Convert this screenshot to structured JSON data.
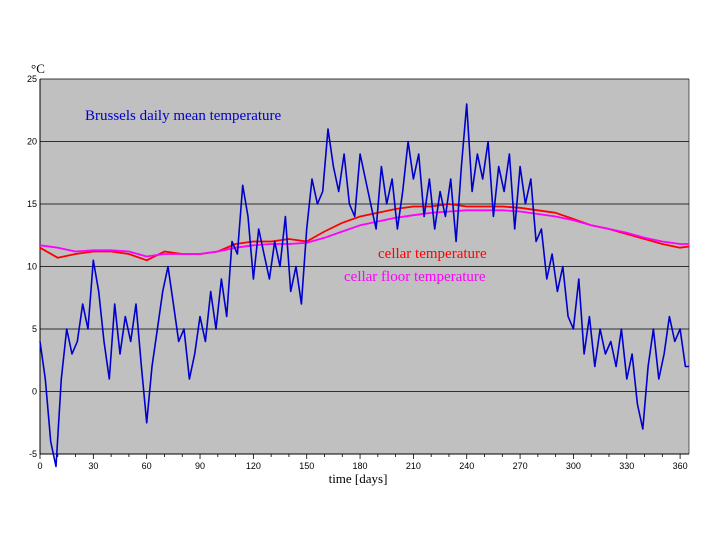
{
  "chart_data": {
    "type": "line",
    "title": "",
    "xlabel": "time [days]",
    "ylabel": "°C",
    "xlim": [
      0,
      365
    ],
    "ylim": [
      -5,
      25
    ],
    "x_ticks": [
      0,
      30,
      60,
      90,
      120,
      150,
      180,
      210,
      240,
      270,
      300,
      330,
      360
    ],
    "y_ticks": [
      -5,
      0,
      5,
      10,
      15,
      20,
      25
    ],
    "grid": "horizontal",
    "background": "#c0c0c0",
    "series": [
      {
        "name": "Brussels daily mean temperature",
        "color": "#0000cc",
        "x": [
          0,
          3,
          6,
          9,
          12,
          15,
          18,
          21,
          24,
          27,
          30,
          33,
          36,
          39,
          42,
          45,
          48,
          51,
          54,
          57,
          60,
          63,
          66,
          69,
          72,
          75,
          78,
          81,
          84,
          87,
          90,
          93,
          96,
          99,
          102,
          105,
          108,
          111,
          114,
          117,
          120,
          123,
          126,
          129,
          132,
          135,
          138,
          141,
          144,
          147,
          150,
          153,
          156,
          159,
          162,
          165,
          168,
          171,
          174,
          177,
          180,
          183,
          186,
          189,
          192,
          195,
          198,
          201,
          204,
          207,
          210,
          213,
          216,
          219,
          222,
          225,
          228,
          231,
          234,
          237,
          240,
          243,
          246,
          249,
          252,
          255,
          258,
          261,
          264,
          267,
          270,
          273,
          276,
          279,
          282,
          285,
          288,
          291,
          294,
          297,
          300,
          303,
          306,
          309,
          312,
          315,
          318,
          321,
          324,
          327,
          330,
          333,
          336,
          339,
          342,
          345,
          348,
          351,
          354,
          357,
          360,
          363,
          365
        ],
        "values": [
          4.0,
          1.0,
          -4.0,
          -6.0,
          1.0,
          5.0,
          3.0,
          4.0,
          7.0,
          5.0,
          10.5,
          8.0,
          4.0,
          1.0,
          7.0,
          3.0,
          6.0,
          4.0,
          7.0,
          2.0,
          -2.5,
          2.0,
          5.0,
          8.0,
          10.0,
          7.0,
          4.0,
          5.0,
          1.0,
          3.0,
          6.0,
          4.0,
          8.0,
          5.0,
          9.0,
          6.0,
          12.0,
          11.0,
          16.5,
          14.0,
          9.0,
          13.0,
          11.0,
          9.0,
          12.0,
          10.0,
          14.0,
          8.0,
          10.0,
          7.0,
          13.0,
          17.0,
          15.0,
          16.0,
          21.0,
          18.0,
          16.0,
          19.0,
          15.0,
          14.0,
          19.0,
          17.0,
          15.0,
          13.0,
          18.0,
          15.0,
          17.0,
          13.0,
          16.0,
          20.0,
          17.0,
          19.0,
          14.0,
          17.0,
          13.0,
          16.0,
          14.0,
          17.0,
          12.0,
          18.0,
          23.0,
          16.0,
          19.0,
          17.0,
          20.0,
          14.0,
          18.0,
          16.0,
          19.0,
          13.0,
          18.0,
          15.0,
          17.0,
          12.0,
          13.0,
          9.0,
          11.0,
          8.0,
          10.0,
          6.0,
          5.0,
          9.0,
          3.0,
          6.0,
          2.0,
          5.0,
          3.0,
          4.0,
          2.0,
          5.0,
          1.0,
          3.0,
          -1.0,
          -3.0,
          2.0,
          5.0,
          1.0,
          3.0,
          6.0,
          4.0,
          5.0,
          2.0,
          2.0
        ]
      },
      {
        "name": "cellar temperature",
        "color": "#ff0000",
        "x": [
          0,
          10,
          20,
          30,
          40,
          50,
          60,
          70,
          80,
          90,
          100,
          110,
          120,
          130,
          140,
          150,
          160,
          170,
          180,
          190,
          200,
          210,
          220,
          230,
          240,
          250,
          260,
          270,
          280,
          290,
          300,
          310,
          320,
          330,
          340,
          350,
          360,
          365
        ],
        "values": [
          11.5,
          10.7,
          11.0,
          11.2,
          11.2,
          11.0,
          10.5,
          11.2,
          11.0,
          11.0,
          11.2,
          11.8,
          12.0,
          12.0,
          12.2,
          12.0,
          12.8,
          13.5,
          14.0,
          14.3,
          14.6,
          14.8,
          14.8,
          15.0,
          14.8,
          14.8,
          14.8,
          14.7,
          14.5,
          14.3,
          13.8,
          13.3,
          13.0,
          12.6,
          12.2,
          11.8,
          11.5,
          11.6
        ]
      },
      {
        "name": "cellar floor temperature",
        "color": "#ff00ff",
        "x": [
          0,
          10,
          20,
          30,
          40,
          50,
          60,
          70,
          80,
          90,
          100,
          110,
          120,
          130,
          140,
          150,
          160,
          170,
          180,
          190,
          200,
          210,
          220,
          230,
          240,
          250,
          260,
          270,
          280,
          290,
          300,
          310,
          320,
          330,
          340,
          350,
          360,
          365
        ],
        "values": [
          11.7,
          11.5,
          11.2,
          11.3,
          11.3,
          11.2,
          10.8,
          11.0,
          11.0,
          11.0,
          11.2,
          11.5,
          11.7,
          11.8,
          11.8,
          11.9,
          12.3,
          12.8,
          13.3,
          13.6,
          13.9,
          14.1,
          14.3,
          14.4,
          14.5,
          14.5,
          14.5,
          14.4,
          14.2,
          14.0,
          13.7,
          13.3,
          13.0,
          12.7,
          12.3,
          12.0,
          11.8,
          11.8
        ]
      }
    ]
  }
}
